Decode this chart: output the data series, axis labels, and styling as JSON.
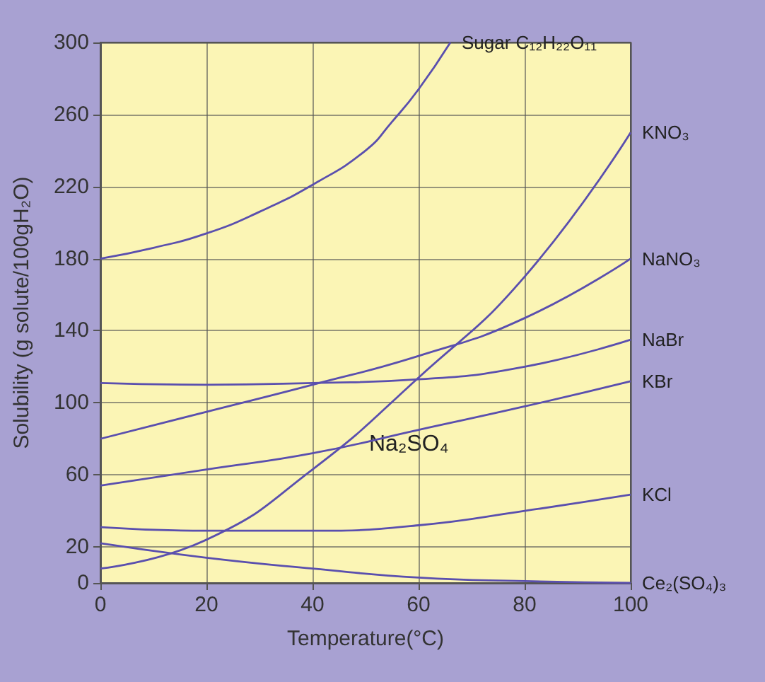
{
  "chart_data": {
    "type": "line",
    "xlabel": "Temperature(°C)",
    "ylabel": "Solubility (g solute/100gH₂O)",
    "xlim": [
      0,
      100
    ],
    "xticks": [
      0,
      20,
      40,
      60,
      80,
      100
    ],
    "ylim": [
      0,
      300
    ],
    "yticks": [
      0,
      20,
      60,
      100,
      140,
      180,
      220,
      260,
      300
    ],
    "grid": true,
    "legend": false,
    "marker": "none",
    "line_style": "solid",
    "annotations": [
      "Na₂SO₄"
    ],
    "series": [
      {
        "name": "Sugar C₁₂H₂₂O₁₁",
        "color": "#5a4fae",
        "x": [
          0,
          10,
          20,
          30,
          40,
          50,
          55,
          60,
          66
        ],
        "values": [
          180,
          186,
          194,
          206,
          221,
          240,
          256,
          274,
          300
        ]
      },
      {
        "name": "KNO₃",
        "color": "#5a4fae",
        "x": [
          0,
          20,
          40,
          60,
          80,
          100
        ],
        "values": [
          8,
          24,
          63,
          114,
          170,
          250
        ]
      },
      {
        "name": "NaNO₃",
        "color": "#5a4fae",
        "x": [
          0,
          20,
          40,
          60,
          80,
          100
        ],
        "values": [
          80,
          95,
          110,
          126,
          147,
          180
        ]
      },
      {
        "name": "NaBr",
        "color": "#5a4fae",
        "x": [
          0,
          20,
          40,
          60,
          80,
          100
        ],
        "values": [
          111,
          110,
          111,
          113,
          120,
          135
        ]
      },
      {
        "name": "KBr",
        "color": "#5a4fae",
        "x": [
          0,
          20,
          40,
          60,
          80,
          100
        ],
        "values": [
          54,
          63,
          72,
          85,
          98,
          112
        ]
      },
      {
        "name": "KCl",
        "color": "#5a4fae",
        "x": [
          0,
          20,
          40,
          60,
          80,
          100
        ],
        "values": [
          31,
          29,
          29,
          32,
          40,
          49
        ]
      },
      {
        "name": "Ce₂(SO₄)₃",
        "color": "#5a4fae",
        "x": [
          0,
          20,
          40,
          60,
          80,
          100
        ],
        "values": [
          22,
          14,
          8,
          3,
          1,
          0
        ]
      }
    ]
  }
}
